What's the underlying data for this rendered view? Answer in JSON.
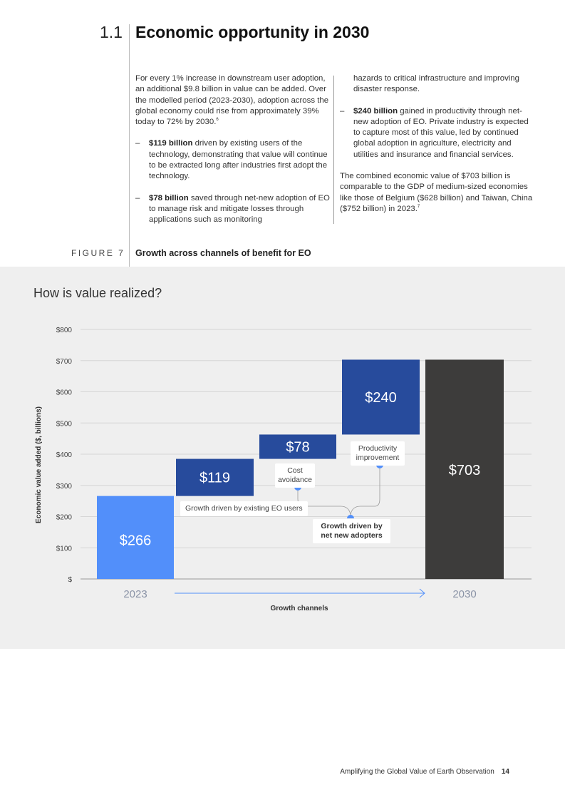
{
  "section": {
    "number": "1.1",
    "title": "Economic opportunity in 2030"
  },
  "body": {
    "left_intro": "For every 1% increase in downstream user adoption, an additional $9.8 billion in value can be added. Over the modelled period (2023-2030), adoption across the global economy could rise from approximately 39% today to 72% by 2030.",
    "left_intro_note": "6",
    "bullets": [
      {
        "bold": "$119 billion",
        "text": " driven by existing users of the technology, demonstrating that value will continue to be extracted long after industries first adopt the technology."
      },
      {
        "bold": "$78 billion",
        "text": " saved through net-new adoption of EO to manage risk and mitigate losses through applications such as monitoring"
      },
      {
        "bold": "",
        "text": "hazards to critical infrastructure and improving disaster response."
      },
      {
        "bold": "$240 billion",
        "text": " gained in productivity through net-new adoption of EO. Private industry is expected to capture most of this value, led by continued global adoption in agriculture, electricity and utilities and insurance and financial services."
      }
    ],
    "closing": "The combined economic value of $703 billion is comparable to the GDP of medium-sized economies like those of Belgium ($628 billion) and Taiwan, China ($752 billion) in 2023.",
    "closing_note": "7"
  },
  "figure": {
    "label": "FIGURE 7",
    "title": "Growth across channels of benefit for EO"
  },
  "chart_data": {
    "type": "bar",
    "subtype": "waterfall",
    "title": "How is value realized?",
    "ylabel": "Economic value added  ($, billions)",
    "xlabel": "Growth channels",
    "ylim": [
      0,
      800
    ],
    "yticks": [
      0,
      100,
      200,
      300,
      400,
      500,
      600,
      700,
      800
    ],
    "ytick_labels": [
      "$",
      "$100",
      "$200",
      "$300",
      "$400",
      "$500",
      "$600",
      "$700",
      "$800"
    ],
    "grid": true,
    "categories": [
      "2023",
      "Growth driven by existing EO users",
      "Cost avoidance",
      "Productivity improvement",
      "2030"
    ],
    "x_tick_labels": [
      "2023",
      "2030"
    ],
    "bars": [
      {
        "label": "$266",
        "start": 0,
        "end": 266,
        "color": "#528ffa"
      },
      {
        "label": "$119",
        "start": 266,
        "end": 385,
        "color": "#274b9c"
      },
      {
        "label": "$78",
        "start": 385,
        "end": 463,
        "color": "#274b9c"
      },
      {
        "label": "$240",
        "start": 463,
        "end": 703,
        "color": "#274b9c"
      },
      {
        "label": "$703",
        "start": 0,
        "end": 703,
        "color": "#3d3c3b"
      }
    ],
    "annotations": {
      "existing": "Growth driven by existing EO users",
      "cost": "Cost avoidance",
      "productivity": "Productivity improvement",
      "net_new": "Growth driven by net new adopters"
    },
    "colors": {
      "accent": "#528ffa",
      "bar_dark_blue": "#274b9c",
      "total": "#3d3c3b",
      "background": "#efefef"
    }
  },
  "footer": {
    "title": "Amplifying the Global Value of Earth Observation",
    "page": "14"
  }
}
